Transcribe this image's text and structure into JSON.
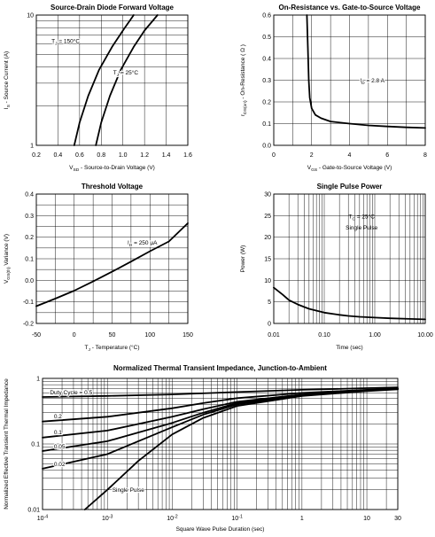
{
  "chart_data": [
    {
      "id": "c1",
      "type": "line",
      "title": "Source-Drain Diode Forward Voltage",
      "xlabel": "V<sub>SD</sub> - Source-to-Drain Voltage (V)",
      "ylabel": "I<sub>S</sub> - Source Current (A)",
      "xlim": [
        0.2,
        1.6
      ],
      "ylim": [
        1,
        10
      ],
      "yscale": "log",
      "xticks": [
        0.2,
        0.4,
        0.6,
        0.8,
        1.0,
        1.2,
        1.4,
        1.6
      ],
      "xtick_labels": [
        "0.2",
        "0.4",
        "0.6",
        "0.8",
        "1.0",
        "1.2",
        "1.4",
        "1.6"
      ],
      "yticks": [
        1,
        10
      ],
      "ytick_labels": [
        "1",
        "10"
      ],
      "grid": true,
      "series": [
        {
          "name": "T<sub>J</sub> = 150°C",
          "x": [
            0.55,
            0.6,
            0.68,
            0.78,
            0.9,
            1.0,
            1.1
          ],
          "y": [
            1.0,
            1.5,
            2.4,
            3.8,
            5.7,
            7.6,
            10.0
          ]
        },
        {
          "name": "T<sub>J</sub> = 25°C",
          "x": [
            0.75,
            0.8,
            0.88,
            0.98,
            1.1,
            1.2,
            1.32
          ],
          "y": [
            1.0,
            1.5,
            2.4,
            3.8,
            5.7,
            7.6,
            10.0
          ]
        }
      ],
      "annotations": [
        "T<sub>J</sub> = 150°C",
        "T<sub>J</sub> = 25°C"
      ]
    },
    {
      "id": "c2",
      "type": "line",
      "title": "On-Resistance vs. Gate-to-Source Voltage",
      "xlabel": "V<sub>GS</sub> - Gate-to-Source Voltage (V)",
      "ylabel": "r<sub>DS(on)</sub> - On-Resistance ( Ω )",
      "xlim": [
        0,
        8
      ],
      "ylim": [
        0,
        0.6
      ],
      "xticks": [
        0,
        2,
        4,
        6,
        8
      ],
      "xtick_labels": [
        "0",
        "2",
        "4",
        "6",
        "8"
      ],
      "yticks": [
        0,
        0.1,
        0.2,
        0.3,
        0.4,
        0.5,
        0.6
      ],
      "ytick_labels": [
        "0.0",
        "0.1",
        "0.2",
        "0.3",
        "0.4",
        "0.5",
        "0.6"
      ],
      "grid": true,
      "series": [
        {
          "name": "",
          "x": [
            1.75,
            1.8,
            1.85,
            1.9,
            2.0,
            2.2,
            2.5,
            3.0,
            4.0,
            5.0,
            6.0,
            7.0,
            8.0
          ],
          "y": [
            0.6,
            0.45,
            0.3,
            0.22,
            0.17,
            0.14,
            0.125,
            0.11,
            0.1,
            0.092,
            0.087,
            0.083,
            0.08
          ]
        }
      ],
      "annotations": [
        "I<sub>D</sub> = 2.8 A"
      ]
    },
    {
      "id": "c3",
      "type": "line",
      "title": "Threshold Voltage",
      "xlabel": "T<sub>J</sub> - Temperature (°C)",
      "ylabel": "V<sub>GS(th)</sub> Variance (V)",
      "xlim": [
        -50,
        150
      ],
      "ylim": [
        -0.2,
        0.4
      ],
      "xticks": [
        -50,
        0,
        50,
        100,
        150
      ],
      "xtick_labels": [
        "-50",
        "0",
        "50",
        "100",
        "150"
      ],
      "yticks": [
        -0.2,
        -0.1,
        0.0,
        0.1,
        0.2,
        0.3,
        0.4
      ],
      "ytick_labels": [
        "-0.2",
        "-0.1",
        "0.0",
        "0.1",
        "0.2",
        "0.3",
        "0.4"
      ],
      "grid": true,
      "series": [
        {
          "name": "",
          "x": [
            -50,
            -25,
            0,
            25,
            50,
            75,
            100,
            125,
            150
          ],
          "y": [
            -0.12,
            -0.085,
            -0.048,
            -0.005,
            0.04,
            0.087,
            0.135,
            0.18,
            0.265
          ]
        }
      ],
      "annotations": [
        "I<sub>D</sub> = 250 μA"
      ]
    },
    {
      "id": "c4",
      "type": "line",
      "title": "Single Pulse Power",
      "xlabel": "Time (sec)",
      "ylabel": "Power (W)",
      "xlim": [
        0.01,
        10
      ],
      "xscale": "log",
      "ylim": [
        0,
        30
      ],
      "xticks": [
        0.01,
        0.1,
        1,
        10
      ],
      "xtick_labels": [
        "0.01",
        "0.10",
        "1.00",
        "10.00"
      ],
      "yticks": [
        0,
        5,
        10,
        15,
        20,
        25,
        30
      ],
      "ytick_labels": [
        "0",
        "5",
        "10",
        "15",
        "20",
        "25",
        "30"
      ],
      "grid": true,
      "series": [
        {
          "name": "",
          "x": [
            0.01,
            0.015,
            0.02,
            0.03,
            0.05,
            0.08,
            0.1,
            0.2,
            0.3,
            0.5,
            1,
            2,
            5,
            10
          ],
          "y": [
            8.3,
            6.7,
            5.4,
            4.4,
            3.4,
            2.8,
            2.5,
            2.0,
            1.75,
            1.55,
            1.35,
            1.2,
            1.05,
            0.95
          ]
        }
      ],
      "annotations": [
        "T<sub>C</sub> = 25°C",
        "Single Pulse"
      ]
    },
    {
      "id": "c5",
      "type": "line",
      "title": "Normalized Thermal Transient Impedance, Junction-to-Ambient",
      "xlabel": "Square Wave Pulse Duration (sec)",
      "ylabel": "Normalized Effective Transient Thermal Impedance",
      "xscale": "log",
      "yscale": "log",
      "xlim": [
        0.0001,
        30
      ],
      "ylim": [
        0.01,
        1
      ],
      "xticks": [
        0.0001,
        0.001,
        0.01,
        0.1,
        1,
        10,
        30
      ],
      "xtick_labels": [
        "10<sup>-4</sup>",
        "10<sup>-3</sup>",
        "10<sup>-2</sup>",
        "10<sup>-1</sup>",
        "1",
        "10",
        "30"
      ],
      "yticks": [
        0.01,
        0.1,
        1
      ],
      "ytick_labels": [
        "0.01",
        "0.1",
        "1"
      ],
      "grid": true,
      "series": [
        {
          "name": "Duty Cycle = 0.5",
          "x": [
            0.0001,
            0.001,
            0.01,
            0.1,
            1,
            10,
            30
          ],
          "y": [
            0.52,
            0.54,
            0.57,
            0.62,
            0.67,
            0.71,
            0.73
          ]
        },
        {
          "name": "0.2",
          "x": [
            0.0001,
            0.001,
            0.01,
            0.03,
            0.1,
            1,
            10,
            30
          ],
          "y": [
            0.22,
            0.26,
            0.35,
            0.42,
            0.5,
            0.6,
            0.67,
            0.7
          ]
        },
        {
          "name": "0.1",
          "x": [
            0.0001,
            0.001,
            0.01,
            0.03,
            0.1,
            1,
            10,
            30
          ],
          "y": [
            0.125,
            0.16,
            0.26,
            0.34,
            0.44,
            0.57,
            0.66,
            0.7
          ]
        },
        {
          "name": "0.05",
          "x": [
            0.0001,
            0.001,
            0.01,
            0.03,
            0.1,
            1,
            10,
            30
          ],
          "y": [
            0.078,
            0.11,
            0.21,
            0.3,
            0.42,
            0.56,
            0.65,
            0.69
          ]
        },
        {
          "name": "0.02",
          "x": [
            0.0001,
            0.001,
            0.003,
            0.01,
            0.03,
            0.1,
            1,
            10,
            30
          ],
          "y": [
            0.042,
            0.07,
            0.11,
            0.18,
            0.28,
            0.4,
            0.55,
            0.65,
            0.69
          ]
        },
        {
          "name": "Single Pulse",
          "x": [
            0.00045,
            0.001,
            0.003,
            0.01,
            0.03,
            0.1,
            1,
            10,
            30
          ],
          "y": [
            0.01,
            0.02,
            0.055,
            0.14,
            0.25,
            0.38,
            0.54,
            0.64,
            0.68
          ]
        }
      ],
      "annotations": [
        "Duty Cycle = 0.5",
        "0.2",
        "0.1",
        "0.05",
        "0.02",
        "Single Pulse"
      ]
    }
  ]
}
